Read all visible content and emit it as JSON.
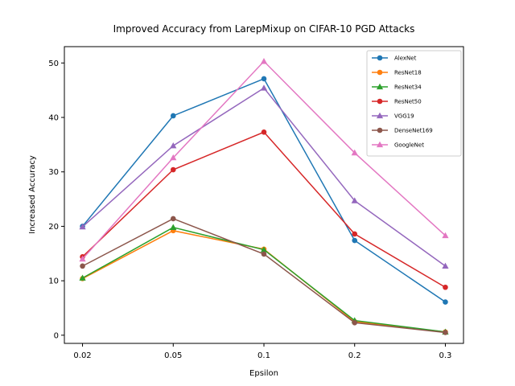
{
  "chart_data": {
    "type": "line",
    "title": "Improved Accuracy from LarepMixup on CIFAR-10 PGD Attacks",
    "xlabel": "Epsilon",
    "ylabel": "Increased Accuracy",
    "x": [
      "0.02",
      "0.05",
      "0.1",
      "0.2",
      "0.3"
    ],
    "ylim": [
      -1.5,
      53
    ],
    "yticks": [
      0,
      10,
      20,
      30,
      40,
      50
    ],
    "grid": false,
    "legend_position": "top-right",
    "series": [
      {
        "name": "AlexNet",
        "color": "#1f77b4",
        "marker": "circle",
        "values": [
          20.0,
          40.3,
          47.1,
          17.4,
          6.1
        ]
      },
      {
        "name": "ResNet18",
        "color": "#ff7f0e",
        "marker": "circle",
        "values": [
          10.4,
          19.2,
          15.8,
          2.5,
          0.6
        ]
      },
      {
        "name": "ResNet34",
        "color": "#2ca02c",
        "marker": "triangle",
        "values": [
          10.5,
          19.8,
          15.7,
          2.7,
          0.6
        ]
      },
      {
        "name": "ResNet50",
        "color": "#d62728",
        "marker": "circle",
        "values": [
          14.4,
          30.4,
          37.3,
          18.6,
          8.8
        ]
      },
      {
        "name": "VGG19",
        "color": "#9467bd",
        "marker": "triangle",
        "values": [
          19.9,
          34.8,
          45.4,
          24.7,
          12.7
        ]
      },
      {
        "name": "DenseNet169",
        "color": "#8c564b",
        "marker": "circle",
        "values": [
          12.7,
          21.4,
          14.9,
          2.3,
          0.5
        ]
      },
      {
        "name": "GoogleNet",
        "color": "#e377c2",
        "marker": "triangle",
        "values": [
          14.0,
          32.6,
          50.3,
          33.5,
          18.3
        ]
      }
    ]
  }
}
